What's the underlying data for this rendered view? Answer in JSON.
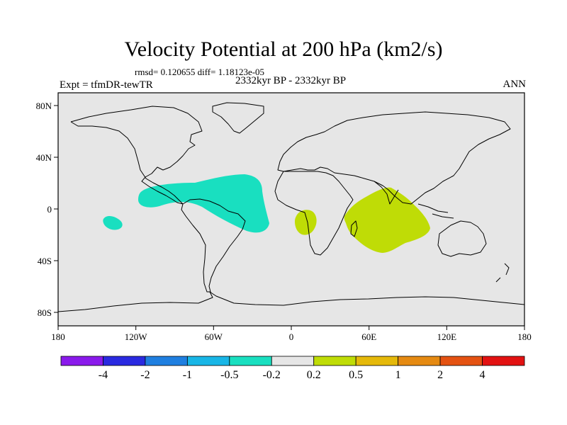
{
  "title": "Velocity Potential at 200 hPa (km2/s)",
  "stats": "rmsd= 0.120655 diff= 1.18123e-05",
  "subtitle": "2332kyr BP - 2332kyr BP",
  "left_label": "Expt = tfmDR-tewTR",
  "right_label": "ANN",
  "axes": {
    "x_ticks": [
      "180",
      "120W",
      "60W",
      "0",
      "60E",
      "120E",
      "180"
    ],
    "y_ticks": [
      "80N",
      "40N",
      "0",
      "40S",
      "80S"
    ]
  },
  "colorbar": {
    "colors": [
      "#8a1aeb",
      "#2a2ae0",
      "#1f7fe0",
      "#18b6e6",
      "#19dfc0",
      "#e6e6e6",
      "#bfdc06",
      "#e5b90a",
      "#e58a12",
      "#e45212",
      "#e21212"
    ],
    "labels": [
      "-4",
      "-2",
      "-1",
      "-0.5",
      "-0.2",
      "0.2",
      "0.5",
      "1",
      "2",
      "4"
    ]
  },
  "map_data": {
    "background_value": "0.2",
    "regions": [
      {
        "name": "tropical-atlantic-negative",
        "bin": "-0.5 to -0.2",
        "color": "#19dfc0"
      },
      {
        "name": "central-pacific-negative",
        "bin": "-0.5 to -0.2",
        "color": "#19dfc0"
      },
      {
        "name": "indian-ocean-positive",
        "bin": "0.2 to 0.5",
        "color": "#bfdc06"
      },
      {
        "name": "southern-africa-positive",
        "bin": "0.2 to 0.5",
        "color": "#bfdc06"
      }
    ]
  }
}
